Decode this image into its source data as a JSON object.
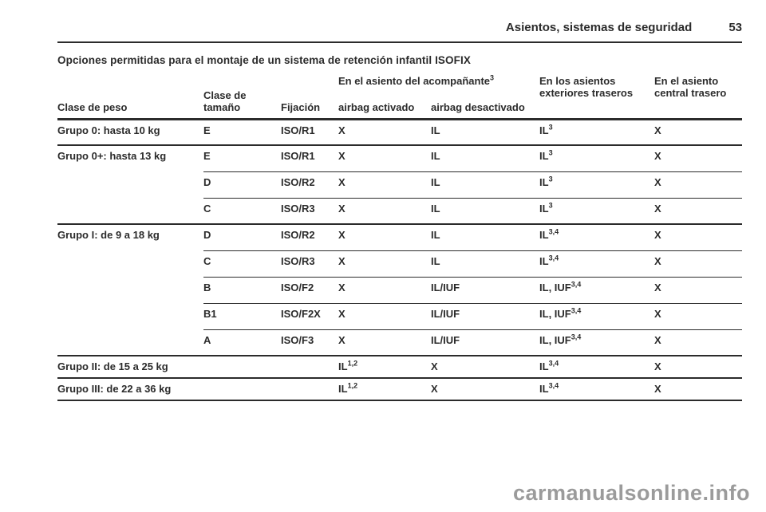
{
  "page_header": {
    "section_title": "Asientos, sistemas de seguridad",
    "page_number": "53"
  },
  "content": {
    "title": "Opciones permitidas para el montaje de un sistema de retención infantil ISOFIX"
  },
  "table": {
    "header": {
      "weight_class": "Clase de peso",
      "size_class": "Clase de tamaño",
      "fixture": "Fijación",
      "passenger_seat": {
        "text": "En el asiento del acompañante",
        "sup": "3"
      },
      "airbag_on": "airbag activado",
      "airbag_off": "airbag desactivado",
      "rear_outer": "En los asientos exteriores traseros",
      "rear_center": "En el asiento central trasero"
    },
    "groups": [
      {
        "label": "Grupo 0: hasta 10 kg",
        "rows": [
          {
            "size": "E",
            "fixture": "ISO/R1",
            "airbag_on": {
              "text": "X"
            },
            "airbag_off": {
              "text": "IL"
            },
            "rear_outer": {
              "text": "IL",
              "sup": "3"
            },
            "rear_center": {
              "text": "X"
            }
          }
        ]
      },
      {
        "label": "Grupo 0+: hasta 13 kg",
        "rows": [
          {
            "size": "E",
            "fixture": "ISO/R1",
            "airbag_on": {
              "text": "X"
            },
            "airbag_off": {
              "text": "IL"
            },
            "rear_outer": {
              "text": "IL",
              "sup": "3"
            },
            "rear_center": {
              "text": "X"
            }
          },
          {
            "size": "D",
            "fixture": "ISO/R2",
            "airbag_on": {
              "text": "X"
            },
            "airbag_off": {
              "text": "IL"
            },
            "rear_outer": {
              "text": "IL",
              "sup": "3"
            },
            "rear_center": {
              "text": "X"
            }
          },
          {
            "size": "C",
            "fixture": "ISO/R3",
            "airbag_on": {
              "text": "X"
            },
            "airbag_off": {
              "text": "IL"
            },
            "rear_outer": {
              "text": "IL",
              "sup": "3"
            },
            "rear_center": {
              "text": "X"
            }
          }
        ]
      },
      {
        "label": "Grupo I: de 9 a 18 kg",
        "rows": [
          {
            "size": "D",
            "fixture": "ISO/R2",
            "airbag_on": {
              "text": "X"
            },
            "airbag_off": {
              "text": "IL"
            },
            "rear_outer": {
              "text": "IL",
              "sup": "3,4"
            },
            "rear_center": {
              "text": "X"
            }
          },
          {
            "size": "C",
            "fixture": "ISO/R3",
            "airbag_on": {
              "text": "X"
            },
            "airbag_off": {
              "text": "IL"
            },
            "rear_outer": {
              "text": "IL",
              "sup": "3,4"
            },
            "rear_center": {
              "text": "X"
            }
          },
          {
            "size": "B",
            "fixture": "ISO/F2",
            "airbag_on": {
              "text": "X"
            },
            "airbag_off": {
              "text": "IL/IUF"
            },
            "rear_outer": {
              "text": "IL, IUF",
              "sup": "3,4"
            },
            "rear_center": {
              "text": "X"
            }
          },
          {
            "size": "B1",
            "fixture": "ISO/F2X",
            "airbag_on": {
              "text": "X"
            },
            "airbag_off": {
              "text": "IL/IUF"
            },
            "rear_outer": {
              "text": "IL, IUF",
              "sup": "3,4"
            },
            "rear_center": {
              "text": "X"
            }
          },
          {
            "size": "A",
            "fixture": "ISO/F3",
            "airbag_on": {
              "text": "X"
            },
            "airbag_off": {
              "text": "IL/IUF"
            },
            "rear_outer": {
              "text": "IL, IUF",
              "sup": "3,4"
            },
            "rear_center": {
              "text": "X"
            }
          }
        ]
      },
      {
        "label": "Grupo II: de 15 a 25 kg",
        "short": true,
        "rows": [
          {
            "size": "",
            "fixture": "",
            "airbag_on": {
              "text": "IL",
              "sup": "1,2"
            },
            "airbag_off": {
              "text": "X"
            },
            "rear_outer": {
              "text": "IL",
              "sup": "3,4"
            },
            "rear_center": {
              "text": "X"
            }
          }
        ]
      },
      {
        "label": "Grupo III: de 22 a 36 kg",
        "short": true,
        "rows": [
          {
            "size": "",
            "fixture": "",
            "airbag_on": {
              "text": "IL",
              "sup": "1,2"
            },
            "airbag_off": {
              "text": "X"
            },
            "rear_outer": {
              "text": "IL",
              "sup": "3,4"
            },
            "rear_center": {
              "text": "X"
            }
          }
        ]
      }
    ]
  },
  "watermark": "carmanualsonline.info",
  "colors": {
    "text": "#2b2b2b",
    "watermark": "#9b9b9b",
    "background": "#ffffff"
  }
}
